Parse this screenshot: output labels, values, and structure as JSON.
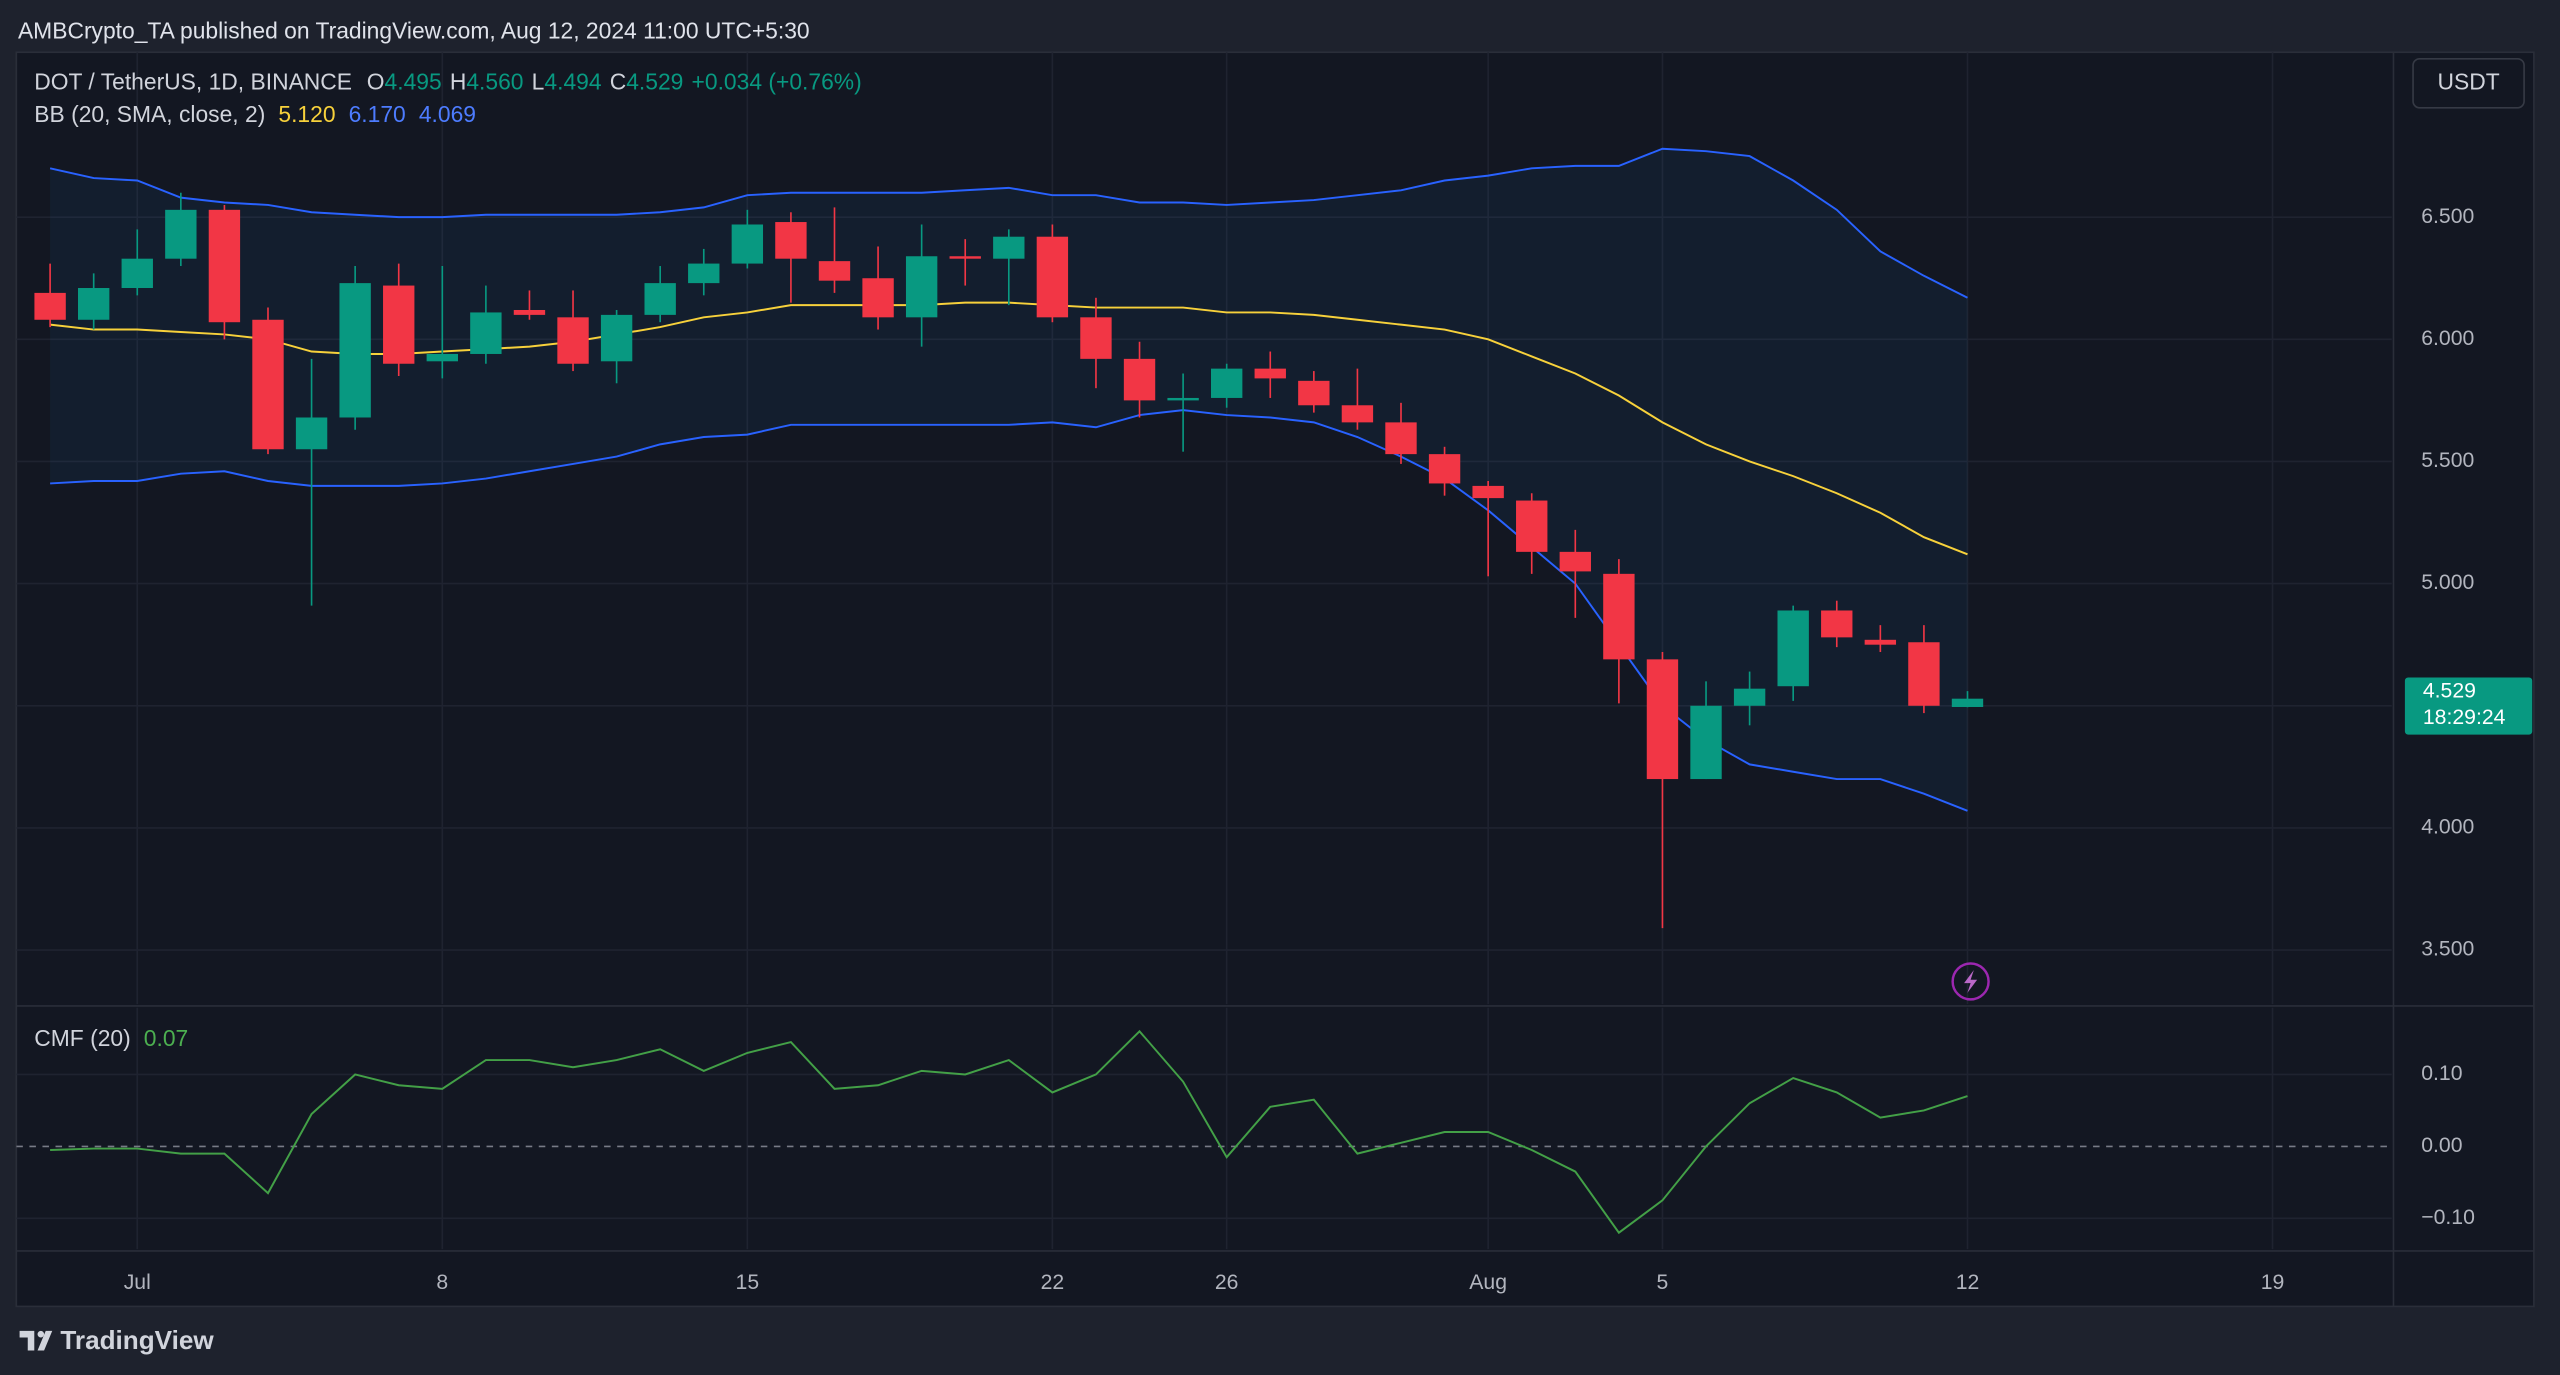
{
  "header": "AMBCrypto_TA published on TradingView.com, Aug 12, 2024 11:00 UTC+5:30",
  "footer": "TradingView",
  "currency": "USDT",
  "chart_data": [
    {
      "type": "candlestick",
      "title": "DOT / TetherUS, 1D, BINANCE",
      "ohlc_legend": [
        {
          "key": "O",
          "value": "4.495"
        },
        {
          "key": "H",
          "value": "4.560"
        },
        {
          "key": "L",
          "value": "4.494"
        },
        {
          "key": "C",
          "value": "4.529"
        }
      ],
      "change": "+0.034 (+0.76%)",
      "up_color": "#089981",
      "down_color": "#f23645",
      "x": [
        "2024-06-29",
        "2024-06-30",
        "2024-07-01",
        "2024-07-02",
        "2024-07-03",
        "2024-07-04",
        "2024-07-05",
        "2024-07-06",
        "2024-07-07",
        "2024-07-08",
        "2024-07-09",
        "2024-07-10",
        "2024-07-11",
        "2024-07-12",
        "2024-07-13",
        "2024-07-14",
        "2024-07-15",
        "2024-07-16",
        "2024-07-17",
        "2024-07-18",
        "2024-07-19",
        "2024-07-20",
        "2024-07-21",
        "2024-07-22",
        "2024-07-23",
        "2024-07-24",
        "2024-07-25",
        "2024-07-26",
        "2024-07-27",
        "2024-07-28",
        "2024-07-29",
        "2024-07-30",
        "2024-07-31",
        "2024-08-01",
        "2024-08-02",
        "2024-08-03",
        "2024-08-04",
        "2024-08-05",
        "2024-08-06",
        "2024-08-07",
        "2024-08-08",
        "2024-08-09",
        "2024-08-10",
        "2024-08-11",
        "2024-08-12"
      ],
      "open": [
        6.19,
        6.08,
        6.21,
        6.33,
        6.53,
        6.08,
        5.55,
        5.68,
        6.22,
        5.91,
        5.94,
        6.12,
        6.09,
        5.91,
        6.1,
        6.23,
        6.31,
        6.48,
        6.32,
        6.25,
        6.09,
        6.34,
        6.33,
        6.42,
        6.09,
        5.92,
        5.75,
        5.76,
        5.88,
        5.83,
        5.73,
        5.66,
        5.53,
        5.4,
        5.34,
        5.13,
        5.04,
        4.69,
        4.2,
        4.5,
        4.58,
        4.89,
        4.77,
        4.76,
        4.495
      ],
      "high": [
        6.31,
        6.27,
        6.45,
        6.6,
        6.55,
        6.13,
        5.92,
        6.3,
        6.31,
        6.3,
        6.22,
        6.2,
        6.2,
        6.12,
        6.3,
        6.37,
        6.53,
        6.52,
        6.54,
        6.38,
        6.47,
        6.41,
        6.45,
        6.47,
        6.17,
        5.99,
        5.86,
        5.9,
        5.95,
        5.87,
        5.88,
        5.74,
        5.56,
        5.42,
        5.37,
        5.22,
        5.1,
        4.72,
        4.6,
        4.64,
        4.91,
        4.93,
        4.83,
        4.83,
        4.56
      ],
      "low": [
        6.05,
        6.04,
        6.18,
        6.3,
        6.0,
        5.53,
        4.91,
        5.63,
        5.85,
        5.84,
        5.9,
        6.08,
        5.87,
        5.82,
        6.07,
        6.18,
        6.29,
        6.15,
        6.19,
        6.04,
        5.97,
        6.22,
        6.14,
        6.07,
        5.8,
        5.68,
        5.54,
        5.72,
        5.76,
        5.7,
        5.63,
        5.49,
        5.36,
        5.03,
        5.04,
        4.86,
        4.51,
        3.59,
        4.2,
        4.42,
        4.52,
        4.74,
        4.72,
        4.47,
        4.494
      ],
      "close": [
        6.08,
        6.21,
        6.33,
        6.53,
        6.07,
        5.55,
        5.68,
        6.23,
        5.9,
        5.94,
        6.11,
        6.1,
        5.9,
        6.1,
        6.23,
        6.31,
        6.47,
        6.33,
        6.24,
        6.09,
        6.34,
        6.33,
        6.42,
        6.09,
        5.92,
        5.75,
        5.76,
        5.88,
        5.84,
        5.73,
        5.66,
        5.53,
        5.41,
        5.35,
        5.13,
        5.05,
        4.69,
        4.2,
        4.5,
        4.57,
        4.89,
        4.78,
        4.75,
        4.5,
        4.529
      ],
      "indicator": {
        "name": "BB (20, SMA, close, 2)",
        "value_labels": [
          "5.120",
          "6.170",
          "4.069"
        ]
      },
      "series": [
        {
          "color": "#f7d13b",
          "values": [
            6.06,
            6.04,
            6.04,
            6.03,
            6.02,
            6.0,
            5.95,
            5.94,
            5.94,
            5.95,
            5.96,
            5.97,
            5.99,
            6.02,
            6.05,
            6.09,
            6.11,
            6.14,
            6.14,
            6.14,
            6.14,
            6.15,
            6.15,
            6.14,
            6.13,
            6.13,
            6.13,
            6.11,
            6.11,
            6.1,
            6.08,
            6.06,
            6.04,
            6.0,
            5.93,
            5.86,
            5.77,
            5.66,
            5.57,
            5.5,
            5.44,
            5.37,
            5.29,
            5.19,
            5.12
          ]
        },
        {
          "color": "#2962ff",
          "values": [
            6.7,
            6.66,
            6.65,
            6.58,
            6.56,
            6.55,
            6.52,
            6.51,
            6.5,
            6.5,
            6.51,
            6.51,
            6.51,
            6.51,
            6.52,
            6.54,
            6.59,
            6.6,
            6.6,
            6.6,
            6.6,
            6.61,
            6.62,
            6.59,
            6.59,
            6.56,
            6.56,
            6.55,
            6.56,
            6.57,
            6.59,
            6.61,
            6.65,
            6.67,
            6.7,
            6.71,
            6.71,
            6.78,
            6.77,
            6.75,
            6.65,
            6.53,
            6.36,
            6.26,
            6.17
          ]
        },
        {
          "color": "#2962ff",
          "values": [
            5.41,
            5.42,
            5.42,
            5.45,
            5.46,
            5.42,
            5.4,
            5.4,
            5.4,
            5.41,
            5.43,
            5.46,
            5.49,
            5.52,
            5.57,
            5.6,
            5.61,
            5.65,
            5.65,
            5.65,
            5.65,
            5.65,
            5.65,
            5.66,
            5.64,
            5.69,
            5.71,
            5.69,
            5.68,
            5.66,
            5.6,
            5.52,
            5.43,
            5.3,
            5.15,
            5.0,
            4.75,
            4.5,
            4.36,
            4.26,
            4.23,
            4.2,
            4.2,
            4.14,
            4.07
          ]
        }
      ],
      "last_price": {
        "label": "4.529",
        "countdown": "18:29:24"
      },
      "xlim": [
        "2024-06-28",
        "2024-08-22"
      ],
      "xticks": [
        {
          "value": "2024-07-01",
          "label": "Jul"
        },
        {
          "value": "2024-07-08",
          "label": "8"
        },
        {
          "value": "2024-07-15",
          "label": "15"
        },
        {
          "value": "2024-07-22",
          "label": "22"
        },
        {
          "value": "2024-07-26",
          "label": "26"
        },
        {
          "value": "2024-08-01",
          "label": "Aug"
        },
        {
          "value": "2024-08-05",
          "label": "5"
        },
        {
          "value": "2024-08-12",
          "label": "12"
        },
        {
          "value": "2024-08-19",
          "label": "19"
        }
      ],
      "ylim": [
        3.278,
        7.175
      ],
      "yticks": [
        {
          "value": 3.5,
          "label": "3.500"
        },
        {
          "value": 4,
          "label": "4.000"
        },
        {
          "value": 4.5,
          "label": "4.500"
        },
        {
          "value": 5,
          "label": "5.000"
        },
        {
          "value": 5.5,
          "label": "5.500"
        },
        {
          "value": 6,
          "label": "6.000"
        },
        {
          "value": 6.5,
          "label": "6.500"
        }
      ],
      "grid": true
    },
    {
      "type": "line",
      "title": "CMF (20)",
      "last_label": "0.07",
      "color": "#43a047",
      "values": [
        -0.005,
        -0.003,
        -0.003,
        -0.01,
        -0.01,
        -0.065,
        0.045,
        0.1,
        0.085,
        0.08,
        0.12,
        0.12,
        0.11,
        0.12,
        0.135,
        0.105,
        0.13,
        0.145,
        0.08,
        0.085,
        0.105,
        0.1,
        0.12,
        0.075,
        0.1,
        0.16,
        0.09,
        -0.015,
        0.055,
        0.065,
        -0.01,
        0.005,
        0.02,
        0.02,
        -0.005,
        -0.035,
        -0.12,
        -0.075,
        0.0,
        0.06,
        0.095,
        0.075,
        0.04,
        0.05,
        0.07
      ],
      "ylim": [
        -0.143,
        0.193
      ],
      "yticks": [
        {
          "value": -0.1,
          "label": "−0.10"
        },
        {
          "value": 0,
          "label": "0.00"
        },
        {
          "value": 0.1,
          "label": "0.10"
        }
      ],
      "grid": true
    }
  ]
}
